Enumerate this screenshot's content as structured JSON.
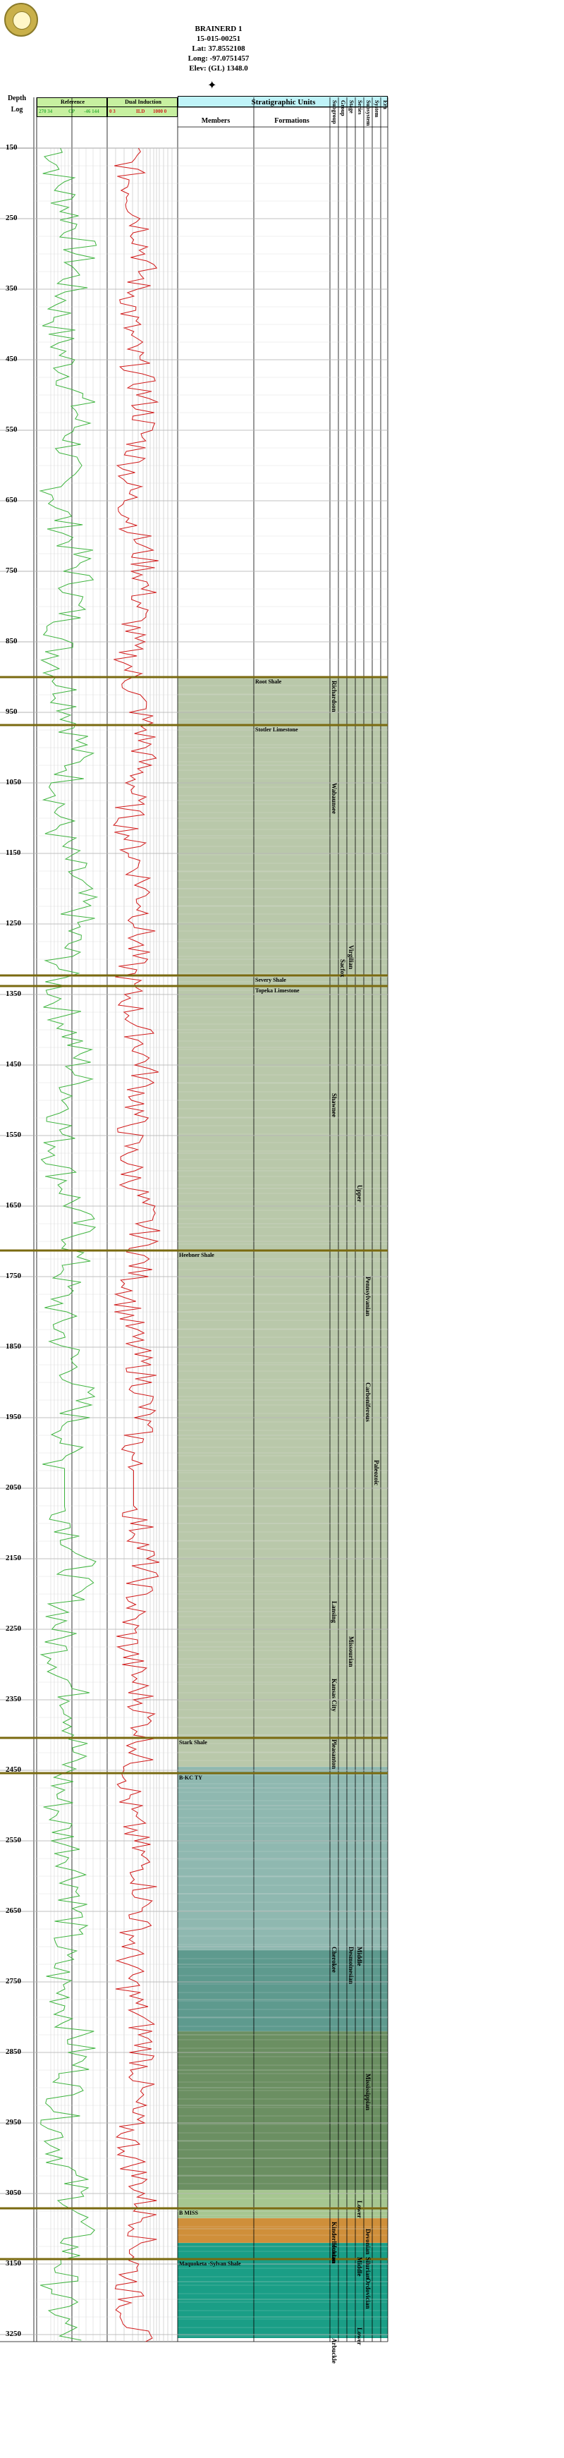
{
  "header": {
    "well_name": "BRAINERD 1",
    "api": "15-015-00251",
    "lat": "Lat: 37.8552108",
    "long": "Long: -97.0751457",
    "elev": "Elev: (GL) 1348.0"
  },
  "columns": {
    "depth_title": "Depth",
    "log_title": "Log",
    "reference_title": "Reference",
    "reference_scale_left": "270  34",
    "reference_scale_mid": "CP",
    "reference_scale_right": "-46  144",
    "induction_title": "Dual Induction",
    "induction_scale_left": "0  3",
    "induction_scale_mid": "ILD",
    "induction_scale_right": "1000  0",
    "strat_title": "Stratigraphic Units",
    "members_title": "Members",
    "formations_title": "Formations",
    "hier_titles": [
      "Era",
      "System",
      "Subsystem",
      "Series",
      "Stage",
      "Group",
      "Subgroup"
    ]
  },
  "depth_labels": [
    "150",
    "250",
    "350",
    "450",
    "550",
    "650",
    "750",
    "850",
    "950",
    "1050",
    "1150",
    "1250",
    "1350",
    "1450",
    "1550",
    "1650",
    "1750",
    "1850",
    "1950",
    "2050",
    "2150",
    "2250",
    "2350",
    "2450",
    "2550",
    "2650",
    "2750",
    "2850",
    "2950",
    "3050",
    "3150",
    "3250"
  ],
  "depth_range": [
    150,
    3260
  ],
  "tops": [
    {
      "name": "Root Shale",
      "depth": 900,
      "col": "formation"
    },
    {
      "name": "Stotler Limestone",
      "depth": 968,
      "col": "formation"
    },
    {
      "name": "Severy Shale",
      "depth": 1323,
      "col": "formation"
    },
    {
      "name": "Topeka Limestone",
      "depth": 1338,
      "col": "formation"
    },
    {
      "name": "Heebner Shale",
      "depth": 1713,
      "col": "member"
    },
    {
      "name": "Stark Shale",
      "depth": 2404,
      "col": "member"
    },
    {
      "name": "B-KC TY",
      "depth": 2454,
      "col": "member"
    },
    {
      "name": "B MISS",
      "depth": 3071,
      "col": "member"
    },
    {
      "name": "Maquoketa -Sylvan Shale",
      "depth": 3143,
      "col": "member"
    }
  ],
  "units": [
    {
      "name": "Richardson",
      "col": "group",
      "depth": 905
    },
    {
      "name": "Wabaunsee",
      "col": "group",
      "depth": 1050
    },
    {
      "name": "Shawnee",
      "col": "group",
      "depth": 1490
    },
    {
      "name": "Lansing",
      "col": "group",
      "depth": 2210
    },
    {
      "name": "Kansas City",
      "col": "group",
      "depth": 2320
    },
    {
      "name": "Pleasanton",
      "col": "group",
      "depth": 2406
    },
    {
      "name": "Cherokee",
      "col": "group",
      "depth": 2700
    },
    {
      "name": "Kinderhookian",
      "col": "group",
      "depth": 3090
    },
    {
      "name": "Hunton",
      "col": "group",
      "depth": 3120
    },
    {
      "name": "Arbuckle",
      "col": "group",
      "depth": 3255
    },
    {
      "name": "Virgilian",
      "col": "series",
      "depth": 1280
    },
    {
      "name": "Sacfox",
      "col": "stage",
      "depth": 1300
    },
    {
      "name": "Upper",
      "col": "subsystem",
      "depth": 1620
    },
    {
      "name": "Pennsylvanian",
      "col": "system",
      "depth": 1750
    },
    {
      "name": "Missourian",
      "col": "series",
      "depth": 2260
    },
    {
      "name": "Desmoinesian",
      "col": "series",
      "depth": 2700
    },
    {
      "name": "Middle",
      "col": "subsystem",
      "depth": 2700
    },
    {
      "name": "Carboniferous",
      "col": "system",
      "depth": 1900
    },
    {
      "name": "Paleozoic",
      "col": "era",
      "depth": 2010
    },
    {
      "name": "Mississippian",
      "col": "system",
      "depth": 2880
    },
    {
      "name": "Lower",
      "col": "subsystem",
      "depth": 3060
    },
    {
      "name": "Devonian",
      "col": "system",
      "depth": 3100
    },
    {
      "name": "Silurian",
      "col": "system",
      "depth": 3140
    },
    {
      "name": "Ordovician",
      "col": "system",
      "depth": 3170
    },
    {
      "name": "Middle",
      "col": "subsystem",
      "depth": 3140
    },
    {
      "name": "Lower",
      "col": "subsystem",
      "depth": 3240
    }
  ],
  "bands": [
    {
      "from": 900,
      "to": 2445,
      "color": "#b9c8aa"
    },
    {
      "from": 2445,
      "to": 2705,
      "color": "#8fb8b0"
    },
    {
      "from": 2705,
      "to": 2820,
      "color": "#5e9a8e"
    },
    {
      "from": 2820,
      "to": 3045,
      "color": "#6b8f62"
    },
    {
      "from": 3045,
      "to": 3085,
      "color": "#a6c690"
    },
    {
      "from": 3085,
      "to": 3120,
      "color": "#cf8f3a"
    },
    {
      "from": 3120,
      "to": 3255,
      "color": "#1a9e86"
    }
  ],
  "colors": {
    "gamma": "#3fb43f",
    "induction": "#d11a1a",
    "top_line": "#7a6a10",
    "reference_header": "#c7f0a0",
    "induction_header": "#c7f0a0",
    "strat_header": "#bff3f8"
  }
}
